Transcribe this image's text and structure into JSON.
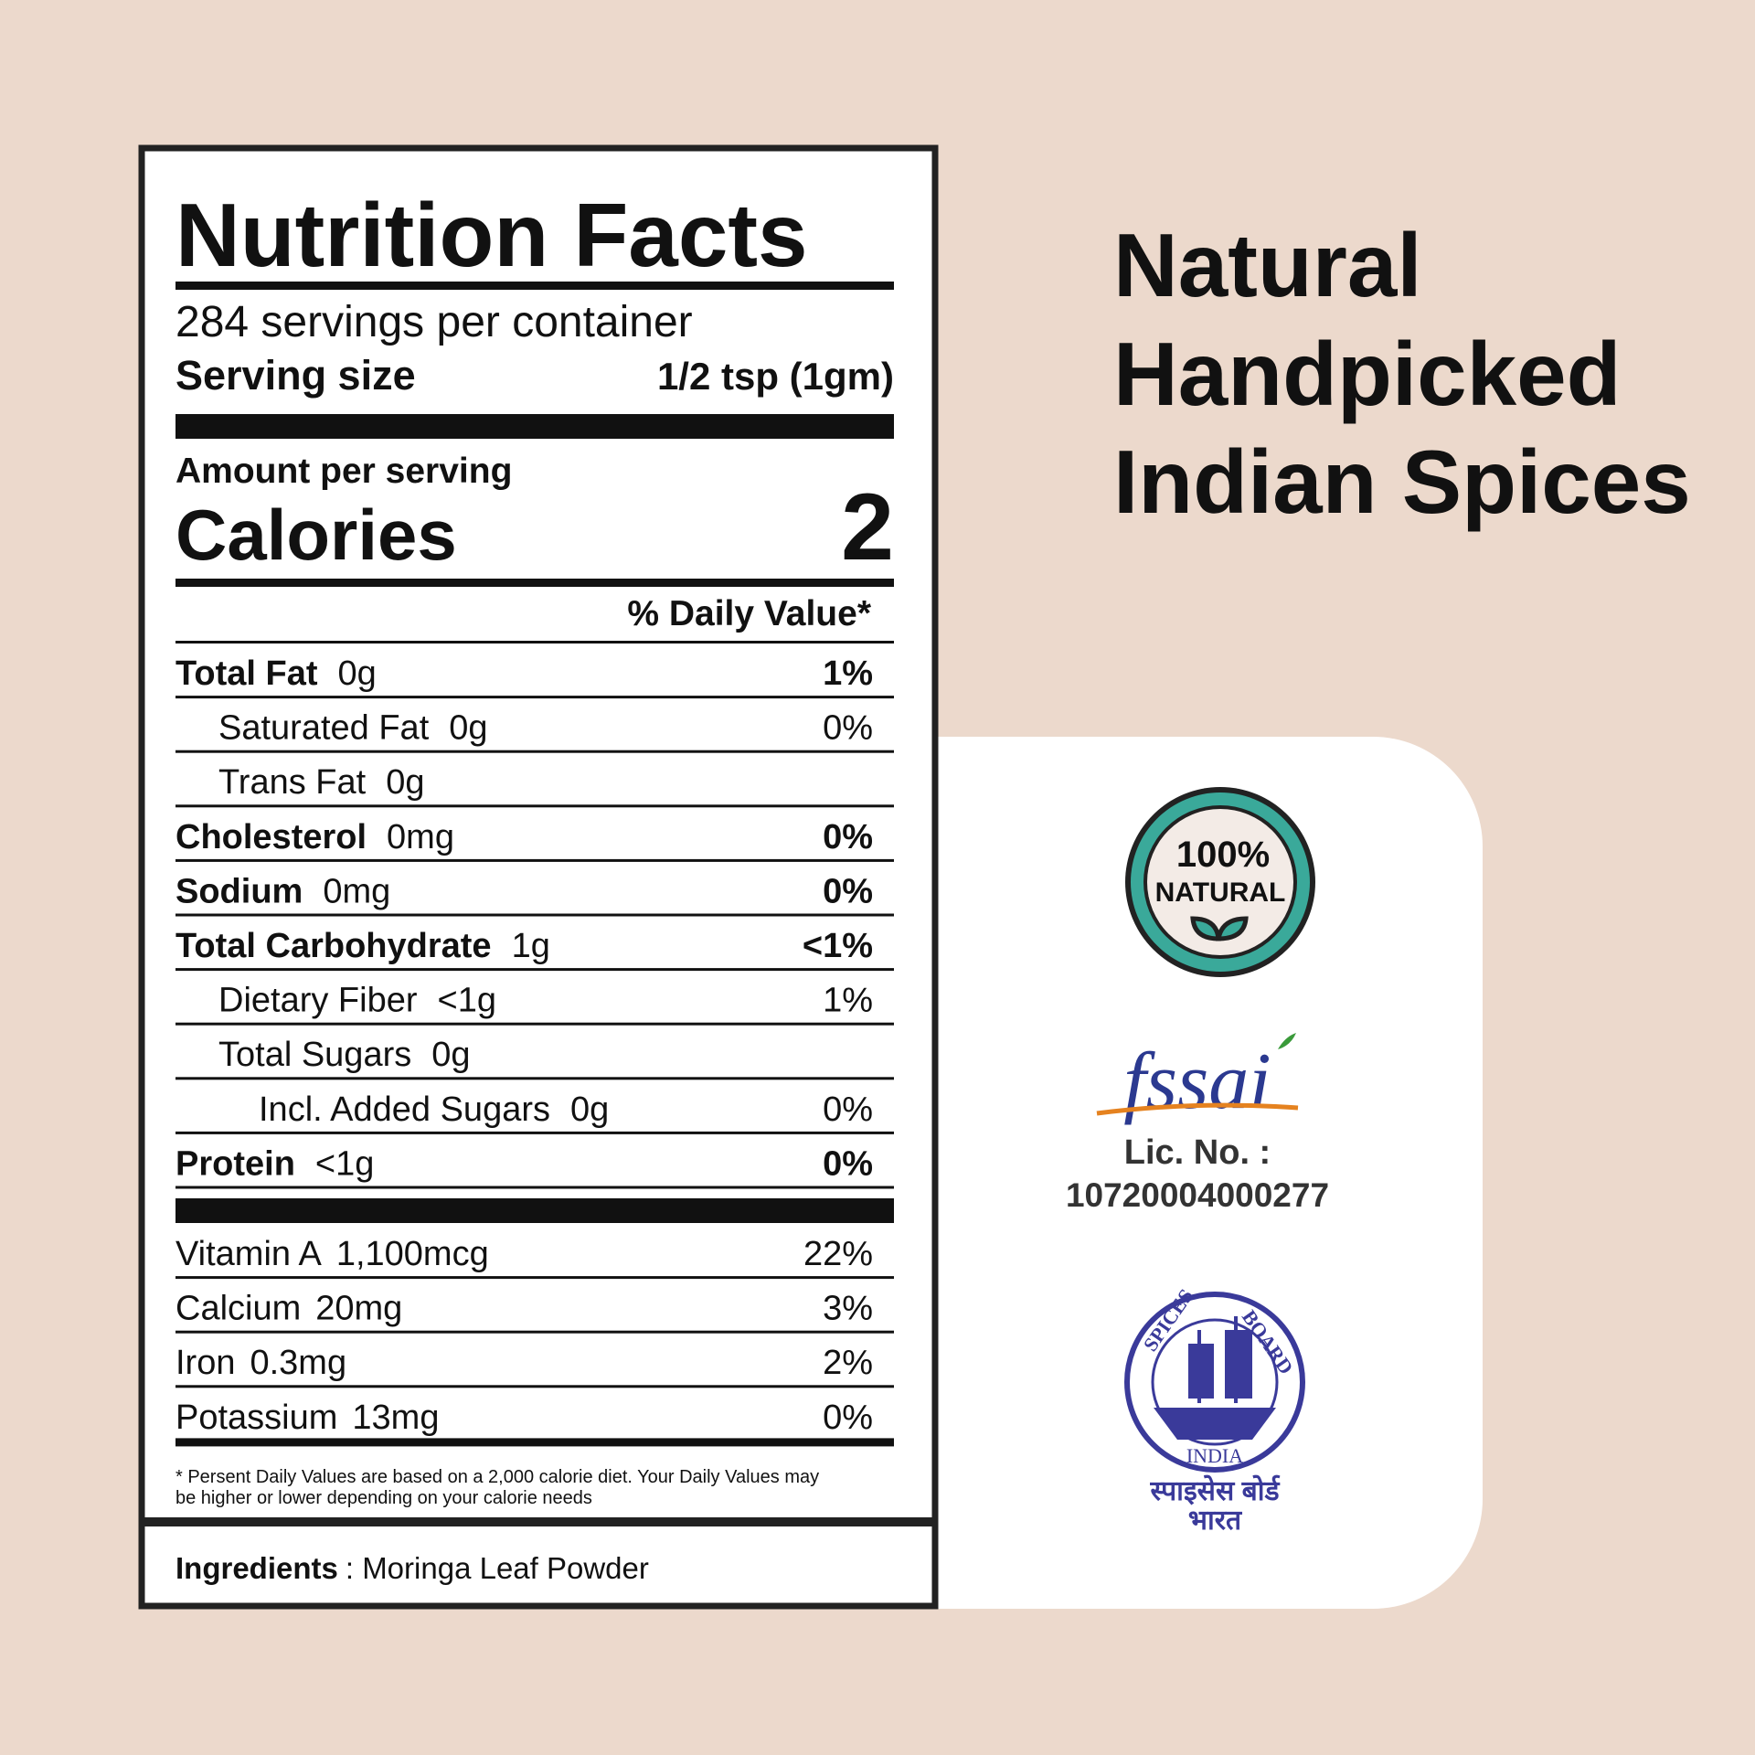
{
  "label": {
    "title": "Nutrition Facts",
    "servings": "284 servings per container",
    "serving_size": {
      "label": "Serving size",
      "value": "1/2 tsp (1gm)"
    },
    "amount_per_serving": "Amount per serving",
    "calories": {
      "label": "Calories",
      "value": "2"
    },
    "daily_value_header": "% Daily Value*",
    "rows": [
      {
        "name": "Total Fat",
        "amount": "0g",
        "dv": "1%",
        "bold": true,
        "indent": 0
      },
      {
        "name": "Saturated Fat",
        "amount": "0g",
        "dv": "0%",
        "bold": false,
        "indent": 1
      },
      {
        "name": "Trans Fat",
        "amount": "0g",
        "bold": false,
        "indent": 1
      },
      {
        "name": "Cholesterol",
        "amount": "0mg",
        "dv": "0%",
        "bold": true,
        "indent": 0
      },
      {
        "name": "Sodium",
        "amount": "0mg",
        "dv": "0%",
        "bold": true,
        "indent": 0
      },
      {
        "name": "Total Carbohydrate",
        "amount": "1g",
        "dv": "<1%",
        "bold": true,
        "indent": 0
      },
      {
        "name": "Dietary Fiber",
        "amount": "<1g",
        "dv": "1%",
        "bold": false,
        "indent": 1
      },
      {
        "name": "Total Sugars",
        "amount": "0g",
        "bold": false,
        "indent": 1
      },
      {
        "name": "Incl. Added Sugars",
        "amount": "0g",
        "dv": "0%",
        "bold": false,
        "indent": 2
      },
      {
        "name": "Protein",
        "amount": "<1g",
        "dv": "0%",
        "bold": true,
        "indent": 0
      }
    ],
    "vitamins": [
      {
        "name": "Vitamin A",
        "amount": "1,100mcg",
        "dv": "22%"
      },
      {
        "name": "Calcium",
        "amount": "20mg",
        "dv": "3%"
      },
      {
        "name": "Iron",
        "amount": "0.3mg",
        "dv": "2%"
      },
      {
        "name": "Potassium",
        "amount": "13mg",
        "dv": "0%"
      }
    ],
    "footnote": [
      "* Persent Daily Values are based on a 2,000 calorie diet. Your Daily Values may",
      "be higher or lower depending on your calorie needs"
    ],
    "ingredients": {
      "label": "Ingredients",
      "text": ": Moringa Leaf Powder"
    }
  },
  "headline": [
    "Natural",
    "Handpicked",
    "Indian Spices"
  ],
  "badges": {
    "natural": {
      "line1": "100%",
      "line2": "NATURAL"
    },
    "fssai": {
      "logo": "fssai",
      "license_label": "Lic. No. :",
      "license_number": "10720004000277"
    },
    "spices_board": {
      "top_left": "SPICES",
      "top_right": "BOARD",
      "bottom": "INDIA",
      "hindi1": "स्पाइसेस बोर्ड",
      "hindi2": "भारत"
    }
  }
}
